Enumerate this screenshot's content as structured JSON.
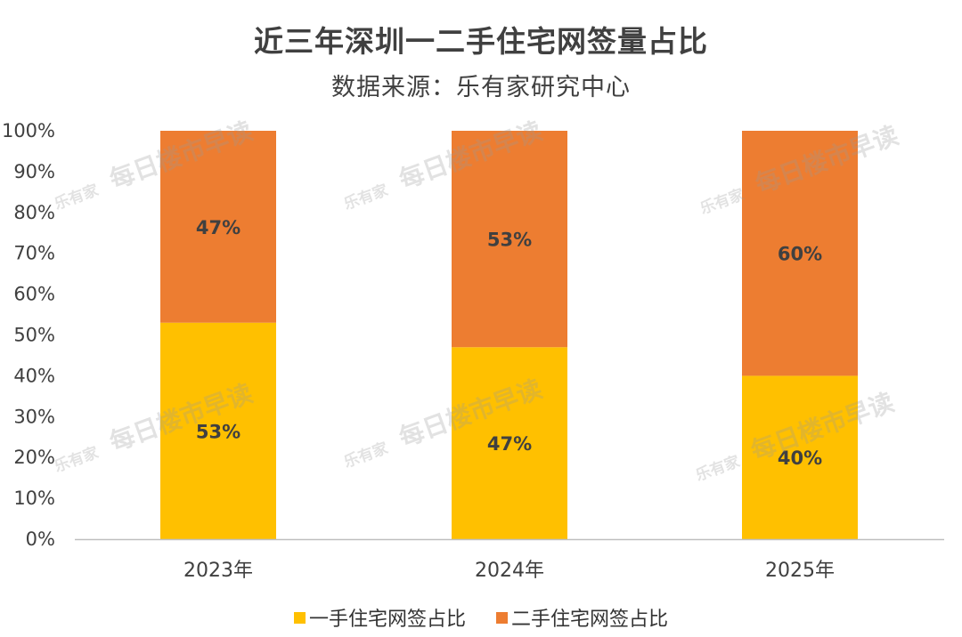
{
  "chart_data": {
    "type": "bar",
    "stacked": true,
    "title": "近三年深圳一二手住宅网签量占比",
    "subtitle": "数据来源：乐有家研究中心",
    "categories": [
      "2023年",
      "2024年",
      "2025年"
    ],
    "series": [
      {
        "name": "一手住宅网签占比",
        "values": [
          53,
          47,
          40
        ],
        "labels": [
          "53%",
          "47%",
          "40%"
        ],
        "color": "#FFC000"
      },
      {
        "name": "二手住宅网签占比",
        "values": [
          47,
          53,
          60
        ],
        "labels": [
          "47%",
          "53%",
          "60%"
        ],
        "color": "#ED7D31"
      }
    ],
    "ylim": [
      0,
      100
    ],
    "yticks": [
      "0%",
      "10%",
      "20%",
      "30%",
      "40%",
      "50%",
      "60%",
      "70%",
      "80%",
      "90%",
      "100%"
    ],
    "grid": false,
    "legend_position": "bottom",
    "watermark": [
      "乐有家",
      "每日楼市早读"
    ]
  }
}
